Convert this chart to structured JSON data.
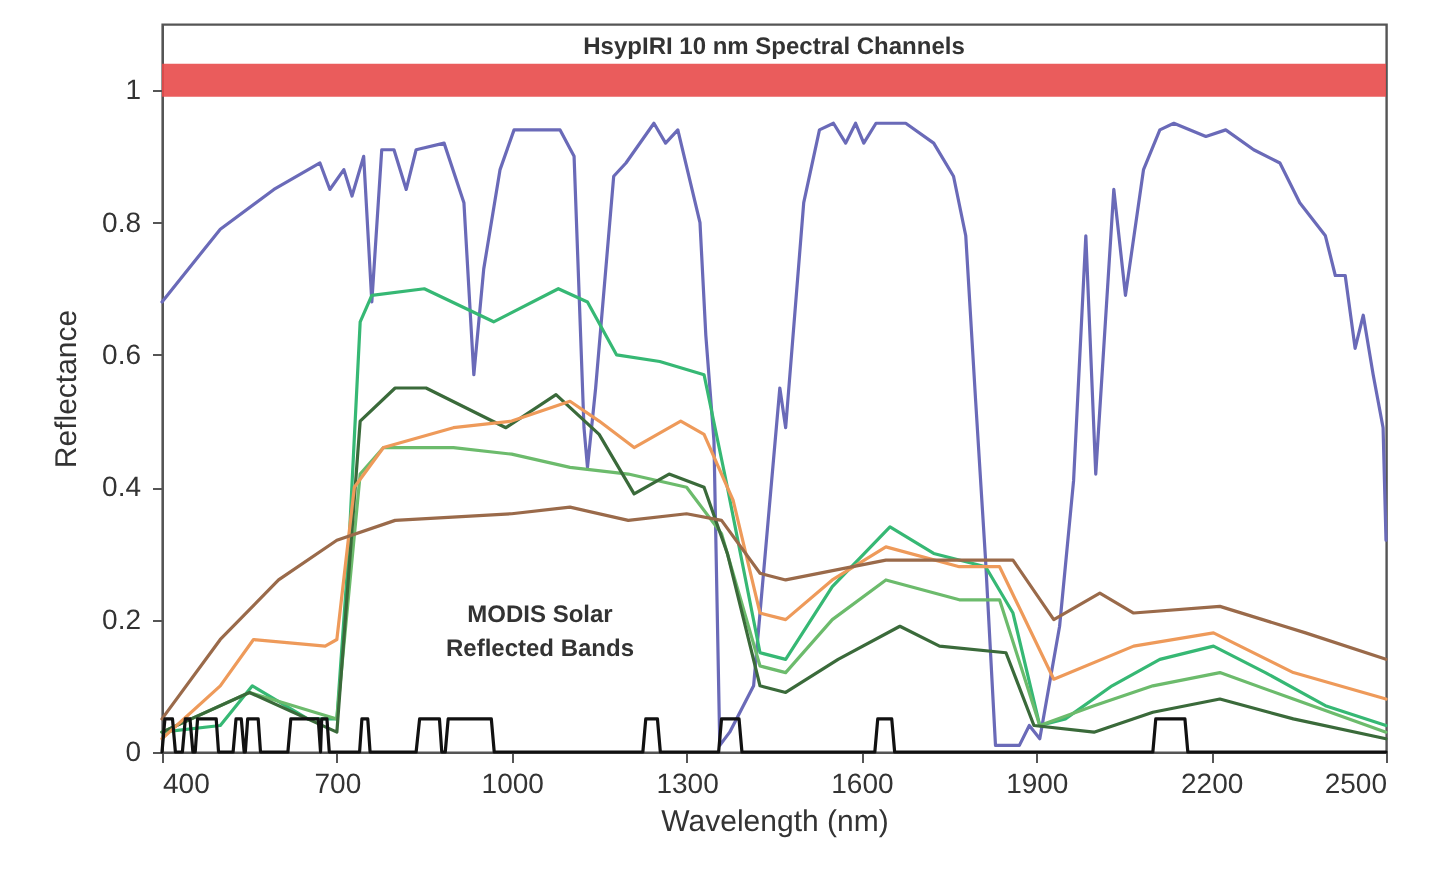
{
  "chart_data": {
    "type": "line",
    "xlabel": "Wavelength (nm)",
    "ylabel": "Reflectance",
    "xlim": [
      400,
      2500
    ],
    "xticks": [
      400,
      700,
      1000,
      1300,
      1600,
      1900,
      2200,
      2500
    ],
    "ylim": [
      0,
      1.1
    ],
    "yticks": [
      0,
      0.2,
      0.4,
      0.6,
      0.8,
      1
    ],
    "grid": false,
    "line_style": "solid",
    "marker": "none",
    "bands": [
      {
        "axis": "y",
        "from": 0.99,
        "to": 1.04,
        "label": "HsypIRI 10 nm Spectral Channels",
        "color": "#e84a4a"
      }
    ],
    "annotations": [
      "MODIS Solar\nReflected Bands"
    ],
    "series": [
      {
        "color": "#6a6ab8",
        "x": [
          400,
          500,
          592,
          671,
          688,
          712,
          726,
          746,
          760,
          777,
          798,
          819,
          836,
          884,
          918,
          935,
          952,
          980,
          1004,
          1083,
          1107,
          1124,
          1130,
          1144,
          1175,
          1196,
          1244,
          1264,
          1285,
          1323,
          1333,
          1347,
          1357,
          1374,
          1415,
          1440,
          1460,
          1470,
          1501,
          1528,
          1552,
          1573,
          1590,
          1604,
          1625,
          1676,
          1724,
          1758,
          1779,
          1796,
          1813,
          1830,
          1871,
          1888,
          1906,
          1940,
          1964,
          1985,
          2002,
          2033,
          2053,
          2084,
          2112,
          2136,
          2191,
          2225,
          2273,
          2318,
          2352,
          2396,
          2413,
          2430,
          2447,
          2461,
          2478,
          2495,
          2500
        ],
        "values": [
          0.68,
          0.79,
          0.85,
          0.89,
          0.85,
          0.88,
          0.84,
          0.9,
          0.68,
          0.91,
          0.91,
          0.85,
          0.91,
          0.92,
          0.83,
          0.57,
          0.73,
          0.88,
          0.94,
          0.94,
          0.9,
          0.49,
          0.43,
          0.55,
          0.87,
          0.89,
          0.95,
          0.92,
          0.94,
          0.8,
          0.63,
          0.47,
          0.01,
          0.03,
          0.1,
          0.35,
          0.55,
          0.49,
          0.83,
          0.94,
          0.95,
          0.92,
          0.95,
          0.92,
          0.95,
          0.95,
          0.92,
          0.87,
          0.78,
          0.53,
          0.29,
          0.01,
          0.01,
          0.04,
          0.02,
          0.19,
          0.41,
          0.78,
          0.42,
          0.85,
          0.69,
          0.88,
          0.94,
          0.95,
          0.93,
          0.94,
          0.91,
          0.89,
          0.83,
          0.78,
          0.72,
          0.72,
          0.61,
          0.66,
          0.57,
          0.49,
          0.32
        ]
      },
      {
        "color": "#36b874",
        "x": [
          400,
          500,
          555,
          650,
          700,
          720,
          740,
          760,
          850,
          969,
          1080,
          1130,
          1180,
          1254,
          1330,
          1370,
          1426,
          1470,
          1550,
          1649,
          1724,
          1813,
          1860,
          1906,
          1950,
          2030,
          2112,
          2204,
          2293,
          2396,
          2500
        ],
        "values": [
          0.03,
          0.04,
          0.1,
          0.05,
          0.05,
          0.3,
          0.65,
          0.69,
          0.7,
          0.65,
          0.7,
          0.68,
          0.6,
          0.59,
          0.57,
          0.4,
          0.15,
          0.14,
          0.25,
          0.34,
          0.3,
          0.28,
          0.21,
          0.04,
          0.05,
          0.1,
          0.14,
          0.16,
          0.12,
          0.07,
          0.04
        ]
      },
      {
        "color": "#6cbb6c",
        "x": [
          400,
          550,
          700,
          740,
          780,
          900,
          1000,
          1100,
          1200,
          1300,
          1360,
          1426,
          1470,
          1550,
          1642,
          1768,
          1837,
          1906,
          1999,
          2100,
          2215,
          2341,
          2500
        ],
        "values": [
          0.03,
          0.09,
          0.05,
          0.42,
          0.46,
          0.46,
          0.45,
          0.43,
          0.42,
          0.4,
          0.33,
          0.13,
          0.12,
          0.2,
          0.26,
          0.23,
          0.23,
          0.04,
          0.07,
          0.1,
          0.12,
          0.08,
          0.03
        ]
      },
      {
        "color": "#3a6a3a",
        "x": [
          400,
          550,
          700,
          740,
          800,
          853,
          990,
          1076,
          1150,
          1210,
          1270,
          1330,
          1370,
          1426,
          1470,
          1560,
          1666,
          1734,
          1848,
          1896,
          1999,
          2100,
          2215,
          2341,
          2500
        ],
        "values": [
          0.03,
          0.09,
          0.03,
          0.5,
          0.55,
          0.55,
          0.49,
          0.54,
          0.48,
          0.39,
          0.42,
          0.4,
          0.3,
          0.1,
          0.09,
          0.14,
          0.19,
          0.16,
          0.15,
          0.04,
          0.03,
          0.06,
          0.08,
          0.05,
          0.02
        ]
      },
      {
        "color": "#ee9a5a",
        "x": [
          400,
          500,
          557,
          680,
          700,
          730,
          780,
          900,
          1000,
          1100,
          1150,
          1210,
          1290,
          1330,
          1380,
          1426,
          1470,
          1550,
          1642,
          1768,
          1837,
          1930,
          2067,
          2204,
          2341,
          2500
        ],
        "values": [
          0.02,
          0.1,
          0.17,
          0.16,
          0.17,
          0.4,
          0.46,
          0.49,
          0.5,
          0.53,
          0.5,
          0.46,
          0.5,
          0.48,
          0.38,
          0.21,
          0.2,
          0.26,
          0.31,
          0.28,
          0.28,
          0.11,
          0.16,
          0.18,
          0.12,
          0.08
        ]
      },
      {
        "color": "#9a6a4a",
        "x": [
          400,
          500,
          600,
          700,
          800,
          1000,
          1100,
          1200,
          1300,
          1360,
          1426,
          1470,
          1642,
          1768,
          1860,
          1930,
          2009,
          2067,
          2215,
          2362,
          2500
        ],
        "values": [
          0.05,
          0.17,
          0.26,
          0.32,
          0.35,
          0.36,
          0.37,
          0.35,
          0.36,
          0.35,
          0.27,
          0.26,
          0.29,
          0.29,
          0.29,
          0.2,
          0.24,
          0.21,
          0.22,
          0.18,
          0.14
        ]
      },
      {
        "color": "#111111",
        "x": [
          400,
          405,
          418,
          423,
          435,
          440,
          448,
          453,
          457,
          461,
          493,
          497,
          522,
          527,
          536,
          541,
          543,
          547,
          565,
          569,
          616,
          621,
          668,
          672,
          674,
          683,
          687,
          739,
          743,
          753,
          757,
          836,
          842,
          876,
          880,
          886,
          891,
          965,
          970,
          1225,
          1230,
          1250,
          1255,
          1355,
          1360,
          1390,
          1395,
          1623,
          1628,
          1652,
          1657,
          2100,
          2105,
          2155,
          2160,
          2500
        ],
        "values": [
          0,
          0.05,
          0.05,
          0,
          0,
          0.05,
          0.05,
          0,
          0,
          0.05,
          0.05,
          0,
          0,
          0.05,
          0.05,
          0,
          0,
          0.05,
          0.05,
          0,
          0,
          0.05,
          0.05,
          0,
          0.05,
          0.05,
          0,
          0,
          0.05,
          0.05,
          0,
          0,
          0.05,
          0.05,
          0,
          0,
          0.05,
          0.05,
          0,
          0,
          0.05,
          0.05,
          0,
          0,
          0.05,
          0.05,
          0,
          0,
          0.05,
          0.05,
          0,
          0,
          0.05,
          0.05,
          0,
          0
        ]
      }
    ]
  }
}
